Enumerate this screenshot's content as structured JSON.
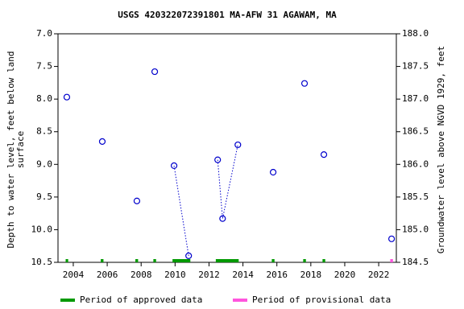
{
  "chart_data": {
    "type": "scatter",
    "title": "USGS 420322072391801 MA-AFW 31 AGAWAM, MA",
    "ylabel": [
      "Depth to water level, feet below land",
      "surface"
    ],
    "y2label": "Groundwater level above NGVD 1929, feet",
    "x": [
      2003.62,
      null,
      2005.71,
      null,
      2007.75,
      null,
      2008.8,
      null,
      2009.94,
      2010.8,
      null,
      2012.51,
      2012.8,
      2013.7,
      null,
      2015.78,
      null,
      2017.63,
      null,
      2018.77,
      null,
      2022.76
    ],
    "values": [
      7.97,
      null,
      8.65,
      null,
      9.56,
      null,
      7.58,
      null,
      9.02,
      10.4,
      null,
      8.93,
      9.83,
      8.7,
      null,
      9.12,
      null,
      7.76,
      null,
      8.85,
      null,
      10.14
    ],
    "color": "#0000cc",
    "xlim": [
      2003.1,
      2023.04
    ],
    "xticks": [
      2004,
      2006,
      2008,
      2010,
      2012,
      2014,
      2016,
      2018,
      2020,
      2022
    ],
    "ylim": [
      10.5,
      7.0
    ],
    "yticks": [
      {
        "value": 7,
        "label": "7.0"
      },
      7.5,
      {
        "value": 8,
        "label": "8.0"
      },
      8.5,
      {
        "value": 9,
        "label": "9.0"
      },
      9.5,
      {
        "value": 10,
        "label": "10.0"
      },
      10.5
    ],
    "y2lim": [
      184.5,
      188.0
    ],
    "y2ticks": [
      {
        "value": 188,
        "label": "188.0"
      },
      187.5,
      {
        "value": 187,
        "label": "187.0"
      },
      186.5,
      {
        "value": 186,
        "label": "186.0"
      },
      185.5,
      {
        "value": 185,
        "label": "185.0"
      },
      184.5
    ],
    "periods": [
      {
        "name": "Period of approved data",
        "color": "#009900",
        "ranges": [
          [
            2003.55,
            2003.7
          ],
          [
            2005.62,
            2005.78
          ],
          [
            2007.66,
            2007.82
          ],
          [
            2008.72,
            2008.88
          ],
          [
            2009.85,
            2010.9
          ],
          [
            2012.4,
            2013.75
          ],
          [
            2015.7,
            2015.86
          ],
          [
            2017.55,
            2017.71
          ],
          [
            2018.69,
            2018.85
          ]
        ]
      },
      {
        "name": "Period of provisional data",
        "color": "#ff55dd",
        "ranges": [
          [
            2022.68,
            2022.84
          ]
        ]
      }
    ]
  }
}
